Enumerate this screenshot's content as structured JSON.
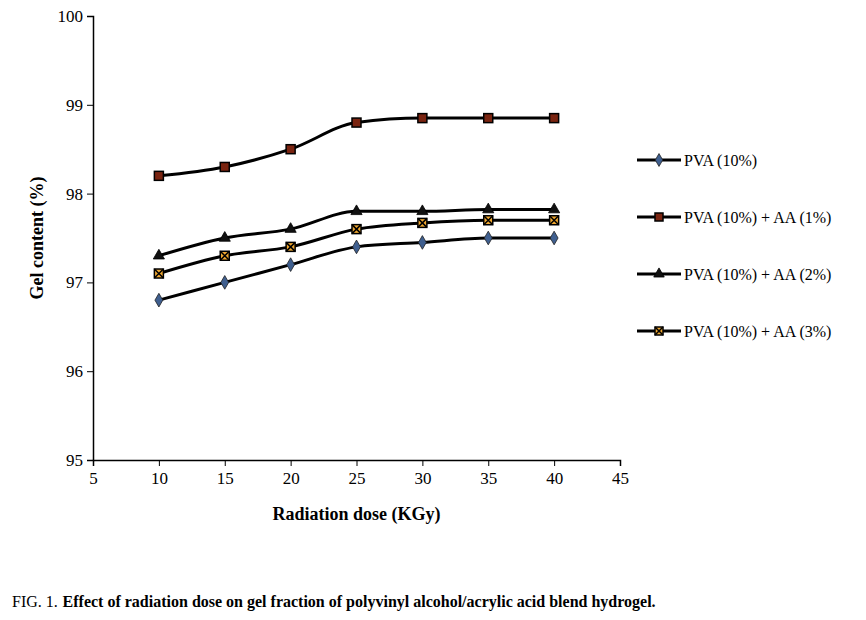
{
  "chart_data": {
    "type": "line",
    "title": "Effect of radiation dose on gel fraction of polyvinyl alcohol/acrylic acid blend hydrogel.",
    "subtitle": "FIG. 1.",
    "x_label": "Radiation dose (KGy)",
    "y_label": "Gel content (%)",
    "x": [
      10,
      15,
      20,
      25,
      30,
      35,
      40
    ],
    "xlim": [
      5,
      45
    ],
    "xticks": [
      5,
      10,
      15,
      20,
      25,
      30,
      35,
      40,
      45
    ],
    "ylim": [
      95,
      100
    ],
    "yticks": [
      95,
      96,
      97,
      98,
      99,
      100
    ],
    "grid": false,
    "legend": "right",
    "series": [
      {
        "name": "PVA (10%)",
        "color": "#3f5f8f",
        "marker": "diamond",
        "values": [
          96.8,
          97.0,
          97.2,
          97.4,
          97.45,
          97.5,
          97.5
        ]
      },
      {
        "name": "PVA (10%) + AA (1%)",
        "color": "#7a2410",
        "marker": "square",
        "values": [
          98.2,
          98.3,
          98.5,
          98.8,
          98.85,
          98.85,
          98.85
        ]
      },
      {
        "name": "PVA (10%) + AA (2%)",
        "color": "#111111",
        "marker": "triangle",
        "values": [
          97.3,
          97.5,
          97.6,
          97.8,
          97.8,
          97.82,
          97.82
        ]
      },
      {
        "name": "PVA (10%) + AA (3%)",
        "color": "#f0a830",
        "marker": "square-x",
        "values": [
          97.1,
          97.3,
          97.4,
          97.6,
          97.67,
          97.7,
          97.7
        ]
      }
    ]
  }
}
